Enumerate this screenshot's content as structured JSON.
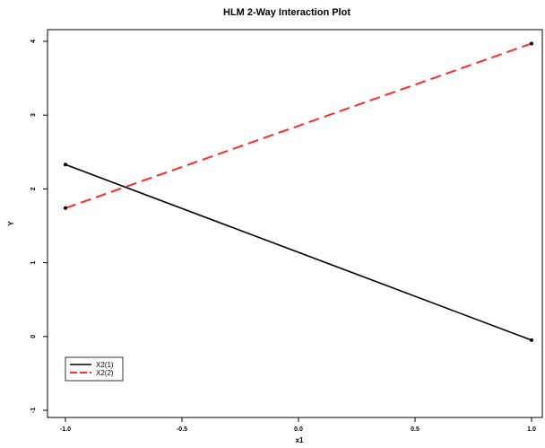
{
  "chart_data": {
    "type": "line",
    "title": "HLM 2-Way Interaction Plot",
    "xlabel": "x1",
    "ylabel": "Y",
    "x": [
      -1.0,
      1.0
    ],
    "xlim": [
      -1.0,
      1.0
    ],
    "ylim": [
      -1,
      4
    ],
    "xticks": [
      "-1.0",
      "-0.5",
      "0.0",
      "0.5",
      "1.0"
    ],
    "yticks": [
      "-1",
      "0",
      "1",
      "2",
      "3",
      "4"
    ],
    "grid": false,
    "legend_position": "bottom-left",
    "series": [
      {
        "name": "X2(1)",
        "values": [
          2.33,
          -0.05
        ],
        "color": "#000000",
        "dash": "solid"
      },
      {
        "name": "X2(2)",
        "values": [
          1.74,
          3.97
        ],
        "color": "#ff2a2a",
        "dash": "dashed"
      }
    ]
  }
}
